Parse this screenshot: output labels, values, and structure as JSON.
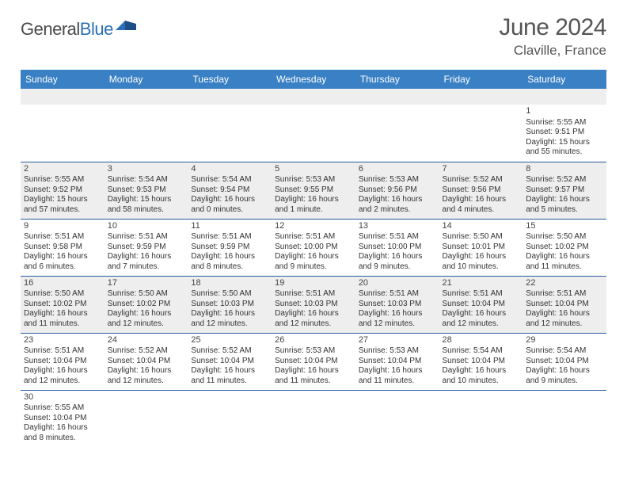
{
  "brand": {
    "part1": "General",
    "part2": "Blue"
  },
  "title": "June 2024",
  "location": "Claville, France",
  "colors": {
    "header_bg": "#3a80c4",
    "header_text": "#ffffff",
    "row_border": "#2a5d9e",
    "row_even_bg": "#eeeeee",
    "row_odd_bg": "#ffffff",
    "brand_accent": "#2970b8",
    "text": "#333333"
  },
  "weekdays": [
    "Sunday",
    "Monday",
    "Tuesday",
    "Wednesday",
    "Thursday",
    "Friday",
    "Saturday"
  ],
  "weeks": [
    [
      null,
      null,
      null,
      null,
      null,
      null,
      {
        "d": "1",
        "sr": "Sunrise: 5:55 AM",
        "ss": "Sunset: 9:51 PM",
        "dl1": "Daylight: 15 hours",
        "dl2": "and 55 minutes."
      }
    ],
    [
      {
        "d": "2",
        "sr": "Sunrise: 5:55 AM",
        "ss": "Sunset: 9:52 PM",
        "dl1": "Daylight: 15 hours",
        "dl2": "and 57 minutes."
      },
      {
        "d": "3",
        "sr": "Sunrise: 5:54 AM",
        "ss": "Sunset: 9:53 PM",
        "dl1": "Daylight: 15 hours",
        "dl2": "and 58 minutes."
      },
      {
        "d": "4",
        "sr": "Sunrise: 5:54 AM",
        "ss": "Sunset: 9:54 PM",
        "dl1": "Daylight: 16 hours",
        "dl2": "and 0 minutes."
      },
      {
        "d": "5",
        "sr": "Sunrise: 5:53 AM",
        "ss": "Sunset: 9:55 PM",
        "dl1": "Daylight: 16 hours",
        "dl2": "and 1 minute."
      },
      {
        "d": "6",
        "sr": "Sunrise: 5:53 AM",
        "ss": "Sunset: 9:56 PM",
        "dl1": "Daylight: 16 hours",
        "dl2": "and 2 minutes."
      },
      {
        "d": "7",
        "sr": "Sunrise: 5:52 AM",
        "ss": "Sunset: 9:56 PM",
        "dl1": "Daylight: 16 hours",
        "dl2": "and 4 minutes."
      },
      {
        "d": "8",
        "sr": "Sunrise: 5:52 AM",
        "ss": "Sunset: 9:57 PM",
        "dl1": "Daylight: 16 hours",
        "dl2": "and 5 minutes."
      }
    ],
    [
      {
        "d": "9",
        "sr": "Sunrise: 5:51 AM",
        "ss": "Sunset: 9:58 PM",
        "dl1": "Daylight: 16 hours",
        "dl2": "and 6 minutes."
      },
      {
        "d": "10",
        "sr": "Sunrise: 5:51 AM",
        "ss": "Sunset: 9:59 PM",
        "dl1": "Daylight: 16 hours",
        "dl2": "and 7 minutes."
      },
      {
        "d": "11",
        "sr": "Sunrise: 5:51 AM",
        "ss": "Sunset: 9:59 PM",
        "dl1": "Daylight: 16 hours",
        "dl2": "and 8 minutes."
      },
      {
        "d": "12",
        "sr": "Sunrise: 5:51 AM",
        "ss": "Sunset: 10:00 PM",
        "dl1": "Daylight: 16 hours",
        "dl2": "and 9 minutes."
      },
      {
        "d": "13",
        "sr": "Sunrise: 5:51 AM",
        "ss": "Sunset: 10:00 PM",
        "dl1": "Daylight: 16 hours",
        "dl2": "and 9 minutes."
      },
      {
        "d": "14",
        "sr": "Sunrise: 5:50 AM",
        "ss": "Sunset: 10:01 PM",
        "dl1": "Daylight: 16 hours",
        "dl2": "and 10 minutes."
      },
      {
        "d": "15",
        "sr": "Sunrise: 5:50 AM",
        "ss": "Sunset: 10:02 PM",
        "dl1": "Daylight: 16 hours",
        "dl2": "and 11 minutes."
      }
    ],
    [
      {
        "d": "16",
        "sr": "Sunrise: 5:50 AM",
        "ss": "Sunset: 10:02 PM",
        "dl1": "Daylight: 16 hours",
        "dl2": "and 11 minutes."
      },
      {
        "d": "17",
        "sr": "Sunrise: 5:50 AM",
        "ss": "Sunset: 10:02 PM",
        "dl1": "Daylight: 16 hours",
        "dl2": "and 12 minutes."
      },
      {
        "d": "18",
        "sr": "Sunrise: 5:50 AM",
        "ss": "Sunset: 10:03 PM",
        "dl1": "Daylight: 16 hours",
        "dl2": "and 12 minutes."
      },
      {
        "d": "19",
        "sr": "Sunrise: 5:51 AM",
        "ss": "Sunset: 10:03 PM",
        "dl1": "Daylight: 16 hours",
        "dl2": "and 12 minutes."
      },
      {
        "d": "20",
        "sr": "Sunrise: 5:51 AM",
        "ss": "Sunset: 10:03 PM",
        "dl1": "Daylight: 16 hours",
        "dl2": "and 12 minutes."
      },
      {
        "d": "21",
        "sr": "Sunrise: 5:51 AM",
        "ss": "Sunset: 10:04 PM",
        "dl1": "Daylight: 16 hours",
        "dl2": "and 12 minutes."
      },
      {
        "d": "22",
        "sr": "Sunrise: 5:51 AM",
        "ss": "Sunset: 10:04 PM",
        "dl1": "Daylight: 16 hours",
        "dl2": "and 12 minutes."
      }
    ],
    [
      {
        "d": "23",
        "sr": "Sunrise: 5:51 AM",
        "ss": "Sunset: 10:04 PM",
        "dl1": "Daylight: 16 hours",
        "dl2": "and 12 minutes."
      },
      {
        "d": "24",
        "sr": "Sunrise: 5:52 AM",
        "ss": "Sunset: 10:04 PM",
        "dl1": "Daylight: 16 hours",
        "dl2": "and 12 minutes."
      },
      {
        "d": "25",
        "sr": "Sunrise: 5:52 AM",
        "ss": "Sunset: 10:04 PM",
        "dl1": "Daylight: 16 hours",
        "dl2": "and 11 minutes."
      },
      {
        "d": "26",
        "sr": "Sunrise: 5:53 AM",
        "ss": "Sunset: 10:04 PM",
        "dl1": "Daylight: 16 hours",
        "dl2": "and 11 minutes."
      },
      {
        "d": "27",
        "sr": "Sunrise: 5:53 AM",
        "ss": "Sunset: 10:04 PM",
        "dl1": "Daylight: 16 hours",
        "dl2": "and 11 minutes."
      },
      {
        "d": "28",
        "sr": "Sunrise: 5:54 AM",
        "ss": "Sunset: 10:04 PM",
        "dl1": "Daylight: 16 hours",
        "dl2": "and 10 minutes."
      },
      {
        "d": "29",
        "sr": "Sunrise: 5:54 AM",
        "ss": "Sunset: 10:04 PM",
        "dl1": "Daylight: 16 hours",
        "dl2": "and 9 minutes."
      }
    ],
    [
      {
        "d": "30",
        "sr": "Sunrise: 5:55 AM",
        "ss": "Sunset: 10:04 PM",
        "dl1": "Daylight: 16 hours",
        "dl2": "and 8 minutes."
      },
      null,
      null,
      null,
      null,
      null,
      null
    ]
  ]
}
